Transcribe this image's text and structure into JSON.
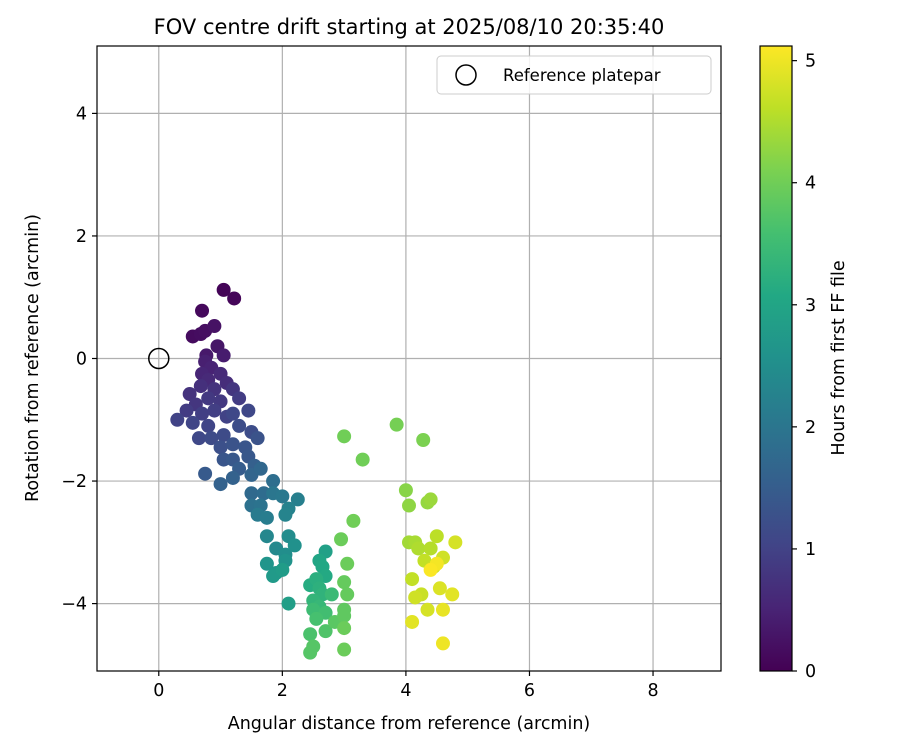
{
  "chart_data": {
    "type": "scatter",
    "title": "FOV centre drift starting at 2025/08/10 20:35:40",
    "xlabel": "Angular distance from reference (arcmin)",
    "ylabel": "Rotation from reference (arcmin)",
    "xlim": [
      -1,
      9.1
    ],
    "ylim": [
      -5.1,
      5.1
    ],
    "xticks": [
      0,
      2,
      4,
      6,
      8
    ],
    "yticks": [
      -4,
      -2,
      0,
      2,
      4
    ],
    "grid": true,
    "legend": {
      "position": "top-right",
      "entries": [
        "Reference platepar"
      ]
    },
    "reference_point": {
      "x": 0,
      "y": 0
    },
    "colorbar": {
      "label": "Hours from first FF file",
      "range": [
        0,
        5.12
      ],
      "ticks": [
        0,
        1,
        2,
        3,
        4,
        5
      ],
      "colormap": "viridis"
    },
    "points": [
      {
        "x": 1.05,
        "y": 1.12,
        "c": 0.05
      },
      {
        "x": 1.22,
        "y": 0.98,
        "c": 0.08
      },
      {
        "x": 0.7,
        "y": 0.78,
        "c": 0.12
      },
      {
        "x": 0.55,
        "y": 0.36,
        "c": 0.15
      },
      {
        "x": 0.68,
        "y": 0.4,
        "c": 0.18
      },
      {
        "x": 0.75,
        "y": 0.45,
        "c": 0.2
      },
      {
        "x": 0.9,
        "y": 0.53,
        "c": 0.25
      },
      {
        "x": 0.95,
        "y": 0.2,
        "c": 0.3
      },
      {
        "x": 0.77,
        "y": 0.05,
        "c": 0.35
      },
      {
        "x": 1.05,
        "y": 0.05,
        "c": 0.4
      },
      {
        "x": 0.75,
        "y": -0.05,
        "c": 0.45
      },
      {
        "x": 0.85,
        "y": -0.15,
        "c": 0.5
      },
      {
        "x": 0.7,
        "y": -0.25,
        "c": 0.55
      },
      {
        "x": 0.8,
        "y": -0.35,
        "c": 0.6
      },
      {
        "x": 1.0,
        "y": -0.25,
        "c": 0.6
      },
      {
        "x": 1.1,
        "y": -0.4,
        "c": 0.65
      },
      {
        "x": 0.68,
        "y": -0.45,
        "c": 0.7
      },
      {
        "x": 0.5,
        "y": -0.58,
        "c": 0.75
      },
      {
        "x": 0.9,
        "y": -0.5,
        "c": 0.75
      },
      {
        "x": 1.2,
        "y": -0.5,
        "c": 0.8
      },
      {
        "x": 0.6,
        "y": -0.75,
        "c": 0.8
      },
      {
        "x": 0.8,
        "y": -0.65,
        "c": 0.85
      },
      {
        "x": 1.0,
        "y": -0.7,
        "c": 0.85
      },
      {
        "x": 1.3,
        "y": -0.65,
        "c": 0.9
      },
      {
        "x": 0.45,
        "y": -0.85,
        "c": 0.9
      },
      {
        "x": 0.7,
        "y": -0.9,
        "c": 0.95
      },
      {
        "x": 0.9,
        "y": -0.85,
        "c": 0.95
      },
      {
        "x": 1.1,
        "y": -0.95,
        "c": 1.0
      },
      {
        "x": 0.3,
        "y": -1.0,
        "c": 1.0
      },
      {
        "x": 0.55,
        "y": -1.05,
        "c": 1.05
      },
      {
        "x": 0.8,
        "y": -1.1,
        "c": 1.05
      },
      {
        "x": 1.2,
        "y": -0.9,
        "c": 1.1
      },
      {
        "x": 1.45,
        "y": -0.85,
        "c": 1.1
      },
      {
        "x": 0.65,
        "y": -1.3,
        "c": 1.1
      },
      {
        "x": 0.85,
        "y": -1.3,
        "c": 1.15
      },
      {
        "x": 1.05,
        "y": -1.25,
        "c": 1.15
      },
      {
        "x": 1.3,
        "y": -1.1,
        "c": 1.2
      },
      {
        "x": 1.5,
        "y": -1.2,
        "c": 1.2
      },
      {
        "x": 1.0,
        "y": -1.45,
        "c": 1.25
      },
      {
        "x": 1.2,
        "y": -1.4,
        "c": 1.3
      },
      {
        "x": 1.6,
        "y": -1.3,
        "c": 1.3
      },
      {
        "x": 1.4,
        "y": -1.45,
        "c": 1.35
      },
      {
        "x": 1.05,
        "y": -1.65,
        "c": 1.35
      },
      {
        "x": 1.2,
        "y": -1.65,
        "c": 1.4
      },
      {
        "x": 1.45,
        "y": -1.6,
        "c": 1.4
      },
      {
        "x": 0.75,
        "y": -1.88,
        "c": 1.45
      },
      {
        "x": 1.3,
        "y": -1.8,
        "c": 1.5
      },
      {
        "x": 1.55,
        "y": -1.75,
        "c": 1.55
      },
      {
        "x": 1.2,
        "y": -1.95,
        "c": 1.6
      },
      {
        "x": 1.0,
        "y": -2.05,
        "c": 1.6
      },
      {
        "x": 1.5,
        "y": -1.9,
        "c": 1.65
      },
      {
        "x": 1.65,
        "y": -1.8,
        "c": 1.7
      },
      {
        "x": 1.5,
        "y": -2.2,
        "c": 1.75
      },
      {
        "x": 1.7,
        "y": -2.2,
        "c": 1.8
      },
      {
        "x": 1.85,
        "y": -2.0,
        "c": 1.85
      },
      {
        "x": 1.5,
        "y": -2.4,
        "c": 1.9
      },
      {
        "x": 1.65,
        "y": -2.4,
        "c": 1.95
      },
      {
        "x": 1.85,
        "y": -2.2,
        "c": 2.0
      },
      {
        "x": 2.0,
        "y": -2.25,
        "c": 2.05
      },
      {
        "x": 1.6,
        "y": -2.55,
        "c": 2.1
      },
      {
        "x": 1.75,
        "y": -2.6,
        "c": 2.15
      },
      {
        "x": 2.25,
        "y": -2.3,
        "c": 2.2
      },
      {
        "x": 2.1,
        "y": -2.45,
        "c": 2.25
      },
      {
        "x": 2.05,
        "y": -2.55,
        "c": 2.3
      },
      {
        "x": 1.75,
        "y": -2.9,
        "c": 2.35
      },
      {
        "x": 1.9,
        "y": -3.1,
        "c": 2.4
      },
      {
        "x": 2.1,
        "y": -2.9,
        "c": 2.45
      },
      {
        "x": 2.05,
        "y": -3.2,
        "c": 2.5
      },
      {
        "x": 2.2,
        "y": -3.05,
        "c": 2.55
      },
      {
        "x": 2.05,
        "y": -3.3,
        "c": 2.6
      },
      {
        "x": 1.75,
        "y": -3.35,
        "c": 2.65
      },
      {
        "x": 1.9,
        "y": -3.5,
        "c": 2.7
      },
      {
        "x": 1.85,
        "y": -3.55,
        "c": 2.75
      },
      {
        "x": 2.0,
        "y": -3.45,
        "c": 2.8
      },
      {
        "x": 2.1,
        "y": -4.0,
        "c": 2.85
      },
      {
        "x": 2.7,
        "y": -3.15,
        "c": 2.9
      },
      {
        "x": 2.6,
        "y": -3.3,
        "c": 3.0
      },
      {
        "x": 2.65,
        "y": -3.4,
        "c": 3.05
      },
      {
        "x": 2.7,
        "y": -3.55,
        "c": 3.1
      },
      {
        "x": 2.45,
        "y": -3.7,
        "c": 3.15
      },
      {
        "x": 2.55,
        "y": -3.6,
        "c": 3.2
      },
      {
        "x": 2.6,
        "y": -3.75,
        "c": 3.25
      },
      {
        "x": 2.65,
        "y": -3.85,
        "c": 3.3
      },
      {
        "x": 2.5,
        "y": -3.95,
        "c": 3.35
      },
      {
        "x": 2.6,
        "y": -4.05,
        "c": 3.4
      },
      {
        "x": 2.8,
        "y": -3.85,
        "c": 3.45
      },
      {
        "x": 2.5,
        "y": -4.1,
        "c": 3.5
      },
      {
        "x": 2.7,
        "y": -4.15,
        "c": 3.55
      },
      {
        "x": 2.55,
        "y": -4.25,
        "c": 3.6
      },
      {
        "x": 2.45,
        "y": -4.5,
        "c": 3.65
      },
      {
        "x": 2.7,
        "y": -4.45,
        "c": 3.7
      },
      {
        "x": 2.5,
        "y": -4.7,
        "c": 3.75
      },
      {
        "x": 2.45,
        "y": -4.8,
        "c": 3.75
      },
      {
        "x": 2.85,
        "y": -4.3,
        "c": 3.8
      },
      {
        "x": 3.0,
        "y": -4.1,
        "c": 3.85
      },
      {
        "x": 3.0,
        "y": -4.2,
        "c": 3.85
      },
      {
        "x": 3.0,
        "y": -3.65,
        "c": 3.9
      },
      {
        "x": 3.05,
        "y": -3.85,
        "c": 3.9
      },
      {
        "x": 3.05,
        "y": -3.35,
        "c": 3.95
      },
      {
        "x": 3.0,
        "y": -4.4,
        "c": 3.95
      },
      {
        "x": 3.0,
        "y": -4.75,
        "c": 3.95
      },
      {
        "x": 2.95,
        "y": -2.95,
        "c": 3.95
      },
      {
        "x": 3.15,
        "y": -2.65,
        "c": 4.0
      },
      {
        "x": 3.0,
        "y": -1.27,
        "c": 4.0
      },
      {
        "x": 3.3,
        "y": -1.65,
        "c": 4.0
      },
      {
        "x": 3.85,
        "y": -1.08,
        "c": 4.05
      },
      {
        "x": 4.28,
        "y": -1.33,
        "c": 4.1
      },
      {
        "x": 4.0,
        "y": -2.15,
        "c": 4.2
      },
      {
        "x": 4.05,
        "y": -2.4,
        "c": 4.25
      },
      {
        "x": 4.35,
        "y": -2.35,
        "c": 4.3
      },
      {
        "x": 4.4,
        "y": -2.3,
        "c": 4.35
      },
      {
        "x": 4.05,
        "y": -3.0,
        "c": 4.4
      },
      {
        "x": 4.15,
        "y": -3.0,
        "c": 4.45
      },
      {
        "x": 4.2,
        "y": -3.1,
        "c": 4.5
      },
      {
        "x": 4.4,
        "y": -3.1,
        "c": 4.55
      },
      {
        "x": 4.5,
        "y": -2.9,
        "c": 4.6
      },
      {
        "x": 4.3,
        "y": -3.3,
        "c": 4.65
      },
      {
        "x": 4.45,
        "y": -3.4,
        "c": 4.7
      },
      {
        "x": 4.6,
        "y": -3.25,
        "c": 4.75
      },
      {
        "x": 4.8,
        "y": -3.0,
        "c": 4.8
      },
      {
        "x": 4.1,
        "y": -3.6,
        "c": 4.65
      },
      {
        "x": 4.25,
        "y": -3.85,
        "c": 4.7
      },
      {
        "x": 4.15,
        "y": -3.9,
        "c": 4.75
      },
      {
        "x": 4.35,
        "y": -4.1,
        "c": 4.8
      },
      {
        "x": 4.55,
        "y": -3.75,
        "c": 4.85
      },
      {
        "x": 4.75,
        "y": -3.85,
        "c": 4.9
      },
      {
        "x": 4.1,
        "y": -4.3,
        "c": 4.9
      },
      {
        "x": 4.6,
        "y": -4.1,
        "c": 4.95
      },
      {
        "x": 4.6,
        "y": -4.65,
        "c": 5.0
      },
      {
        "x": 4.5,
        "y": -3.35,
        "c": 5.05
      },
      {
        "x": 4.4,
        "y": -3.45,
        "c": 5.1
      }
    ]
  }
}
